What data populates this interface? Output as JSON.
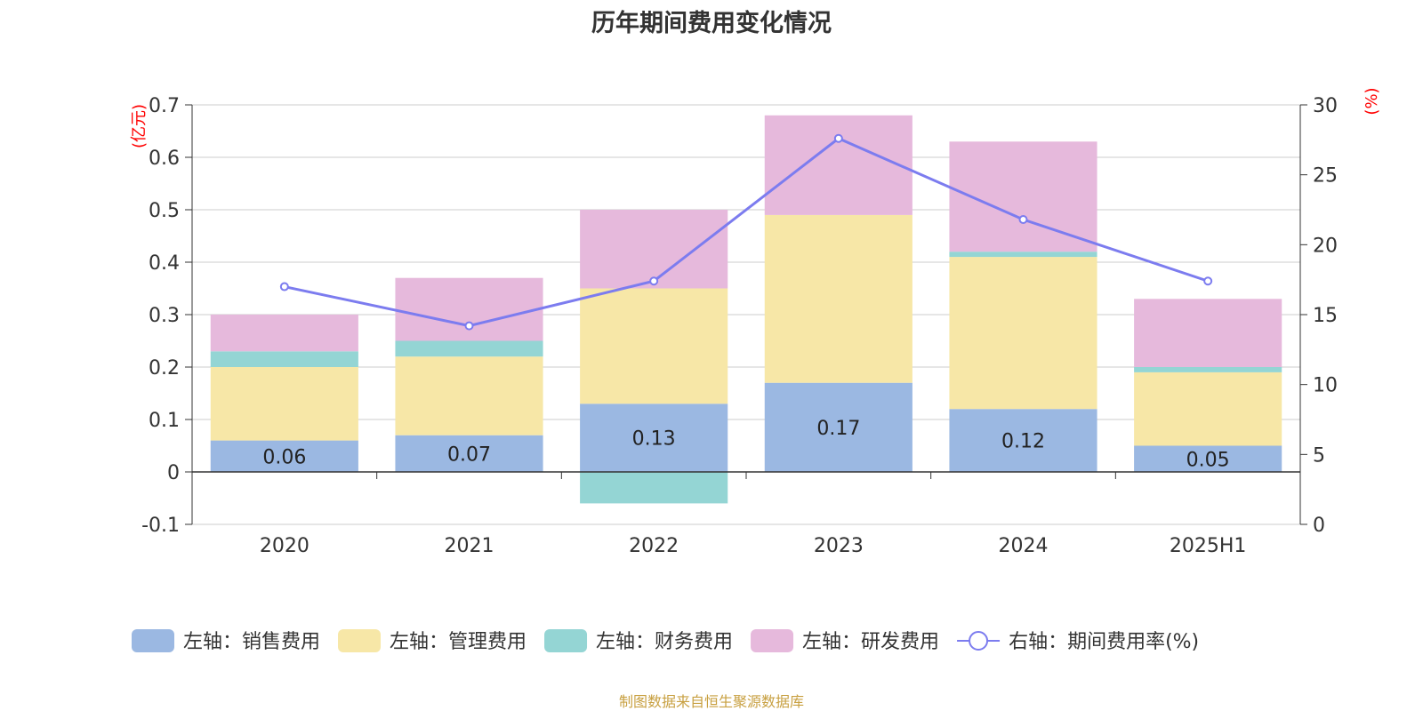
{
  "colors": {
    "sales": "#9bb8e2",
    "admin": "#f7e7a7",
    "finance": "#94d5d4",
    "rd": "#e6b9dc",
    "rate_line": "#7c7cef",
    "axis_unit": "#ff0000",
    "title": "#333333",
    "source": "#c8a041"
  },
  "source_note": "制图数据来自恒生聚源数据库",
  "chart_data": {
    "type": "bar",
    "title": "历年期间费用变化情况",
    "stacked": true,
    "categories": [
      "2020",
      "2021",
      "2022",
      "2023",
      "2024",
      "2025H1"
    ],
    "left_axis": {
      "unit_label": "(亿元)",
      "ylim": [
        -0.1,
        0.7
      ],
      "ticks": [
        "0.7",
        "0.6",
        "0.5",
        "0.4",
        "0.3",
        "0.2",
        "0.1",
        "0",
        "-0.1"
      ]
    },
    "right_axis": {
      "unit_label": "(%)",
      "ylim": [
        0,
        30
      ],
      "ticks": [
        "30",
        "25",
        "20",
        "15",
        "10",
        "5",
        "0"
      ]
    },
    "series": [
      {
        "name": "左轴：销售费用",
        "key": "sales",
        "axis": "left",
        "values": [
          0.06,
          0.07,
          0.13,
          0.17,
          0.12,
          0.05
        ],
        "data_labels": [
          "0.06",
          "0.07",
          "0.13",
          "0.17",
          "0.12",
          "0.05"
        ]
      },
      {
        "name": "左轴：管理费用",
        "key": "admin",
        "axis": "left",
        "values": [
          0.14,
          0.15,
          0.22,
          0.32,
          0.29,
          0.14
        ]
      },
      {
        "name": "左轴：财务费用",
        "key": "finance",
        "axis": "left",
        "values": [
          0.03,
          0.03,
          -0.06,
          0.0,
          0.01,
          0.01
        ]
      },
      {
        "name": "左轴：研发费用",
        "key": "rd",
        "axis": "left",
        "values": [
          0.07,
          0.12,
          0.15,
          0.19,
          0.21,
          0.13
        ]
      },
      {
        "name": "右轴：期间费用率(%)",
        "key": "rate_line",
        "axis": "right",
        "type": "line",
        "values": [
          17.0,
          14.2,
          17.4,
          27.6,
          21.8,
          17.4
        ]
      }
    ],
    "grid": true,
    "legend": "bottom"
  }
}
